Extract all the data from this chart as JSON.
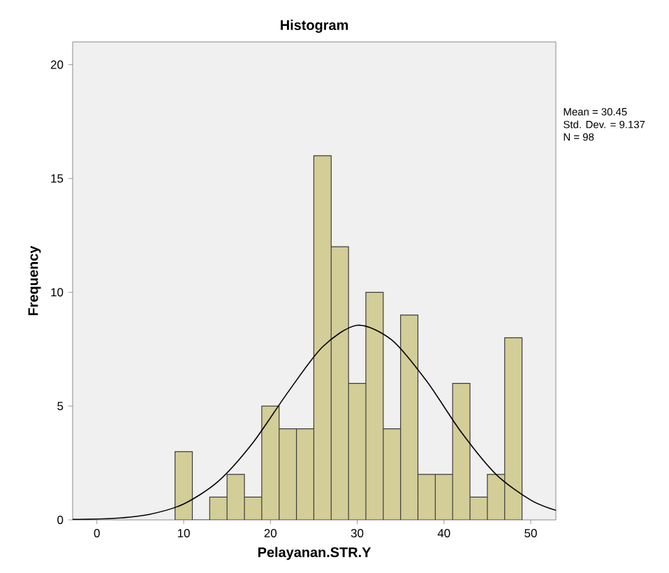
{
  "chart_data": {
    "type": "histogram",
    "title": "Histogram",
    "xlabel": "Pelayanan.STR.Y",
    "ylabel": "Frequency",
    "bins": [
      9,
      11,
      13,
      15,
      17,
      19,
      21,
      23,
      25,
      27,
      29,
      31,
      33,
      35,
      37,
      39,
      41,
      43,
      45,
      47,
      49
    ],
    "values": [
      3,
      0,
      1,
      2,
      1,
      5,
      4,
      4,
      16,
      12,
      6,
      10,
      4,
      9,
      2,
      2,
      6,
      1,
      2,
      8
    ],
    "color": "#d3ce97",
    "series": [
      {
        "type": "line",
        "color": "#000000",
        "x": [
          -2.8,
          2,
          6,
          10,
          14,
          18,
          22,
          26,
          30,
          34,
          38,
          42,
          46,
          50,
          52.9
        ],
        "values": [
          0.02,
          0.07,
          0.24,
          0.7,
          1.7,
          3.4,
          5.6,
          7.6,
          8.55,
          7.9,
          6.1,
          3.85,
          2.0,
          0.87,
          0.42
        ]
      }
    ],
    "xlim": [
      -2.8,
      52.9
    ],
    "ylim": [
      0,
      21
    ],
    "xticks": [
      0,
      10,
      20,
      30,
      40,
      50
    ],
    "yticks": [
      0,
      5,
      10,
      15,
      20
    ],
    "annotations": [
      "Mean = 30.45",
      "Std. Dev. = 9.137",
      "N = 98"
    ]
  }
}
